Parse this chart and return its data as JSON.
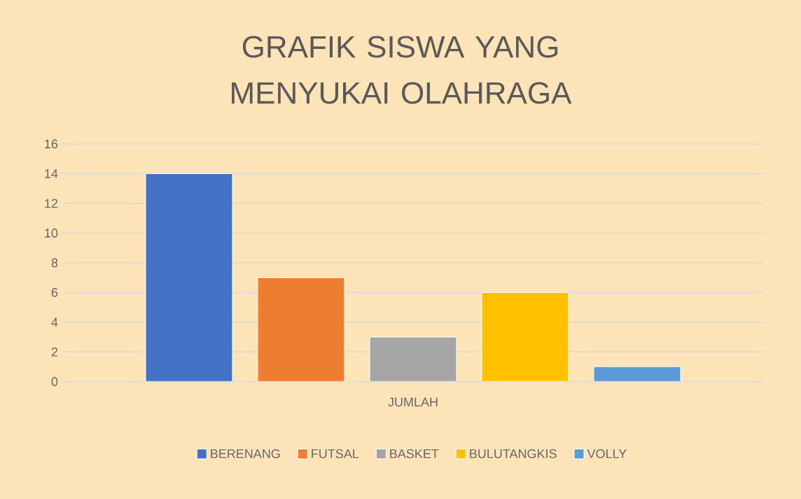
{
  "chart_data": {
    "type": "bar",
    "title": "GRAFIK SISWA YANG MENYUKAI OLAHRAGA",
    "categories": [
      "JUMLAH"
    ],
    "series": [
      {
        "name": "BERENANG",
        "color": "#4472c4",
        "values": [
          14
        ]
      },
      {
        "name": "FUTSAL",
        "color": "#ed7d31",
        "values": [
          7
        ]
      },
      {
        "name": "BASKET",
        "color": "#a5a5a5",
        "values": [
          3
        ]
      },
      {
        "name": "BULUTANGKIS",
        "color": "#ffc000",
        "values": [
          6
        ]
      },
      {
        "name": "VOLLY",
        "color": "#5b9bd5",
        "values": [
          1
        ]
      }
    ],
    "ylim": [
      0,
      16
    ],
    "yticks": [
      0,
      2,
      4,
      6,
      8,
      10,
      12,
      14,
      16
    ],
    "grid": "y",
    "legend": "bottom"
  }
}
